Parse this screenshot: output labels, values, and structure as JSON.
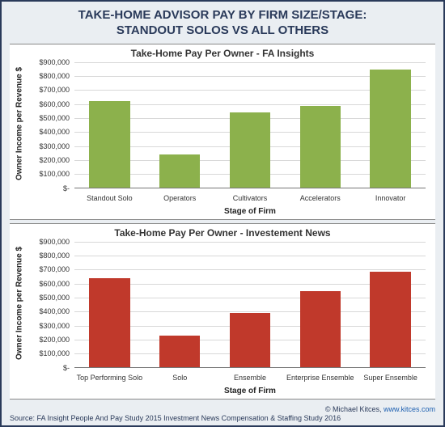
{
  "title_line1": "TAKE-HOME ADVISOR PAY BY FIRM SIZE/STAGE:",
  "title_line2": "STANDOUT SOLOS VS ALL OTHERS",
  "outer_border_color": "#2a3a5a",
  "outer_bg": "#eaeef2",
  "panel_bg": "#ffffff",
  "grid_color": "#d8d8d8",
  "ylabel": "Owner Income per Revenue $",
  "xlabel": "Stage of Firm",
  "yticks": [
    {
      "v": 0,
      "label": "$-"
    },
    {
      "v": 100000,
      "label": "$100,000"
    },
    {
      "v": 200000,
      "label": "$200,000"
    },
    {
      "v": 300000,
      "label": "$300,000"
    },
    {
      "v": 400000,
      "label": "$400,000"
    },
    {
      "v": 500000,
      "label": "$500,000"
    },
    {
      "v": 600000,
      "label": "$600,000"
    },
    {
      "v": 700000,
      "label": "$700,000"
    },
    {
      "v": 800000,
      "label": "$800,000"
    },
    {
      "v": 900000,
      "label": "$900,000"
    }
  ],
  "ymax": 900000,
  "charts": [
    {
      "title": "Take-Home Pay Per Owner - FA Insights",
      "bar_color": "#8cb14c",
      "categories": [
        "Standout Solo",
        "Operators",
        "Cultivators",
        "Accelerators",
        "Innovator"
      ],
      "values": [
        620000,
        240000,
        540000,
        585000,
        845000
      ]
    },
    {
      "title": "Take-Home Pay Per Owner - Investement News",
      "bar_color": "#c0392b",
      "categories": [
        "Top Performing Solo",
        "Solo",
        "Ensemble",
        "Enterprise Ensemble",
        "Super Ensemble"
      ],
      "values": [
        640000,
        230000,
        390000,
        545000,
        685000
      ]
    }
  ],
  "credit_text": "© Michael Kitces, ",
  "credit_link_text": "www.kitces.com",
  "source_text": "Source: FA Insight People And Pay Study 2015 Investment News Compensation & Staffing Study 2016"
}
